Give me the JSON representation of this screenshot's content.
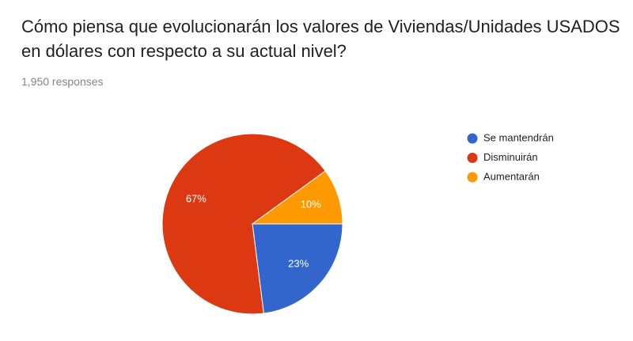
{
  "chart_data": {
    "type": "pie",
    "title": "Cómo piensa que evolucionarán los valores de Viviendas/Unidades USADOS en dólares con respecto a su actual nivel?",
    "subtitle": "1,950 responses",
    "categories": [
      "Se mantendrán",
      "Disminuirán",
      "Aumentarán"
    ],
    "values": [
      23,
      67,
      10
    ],
    "value_labels": [
      "23%",
      "67%",
      "10%"
    ],
    "colors": [
      "#3366cc",
      "#dc3912",
      "#ff9900"
    ],
    "legend": "right"
  }
}
